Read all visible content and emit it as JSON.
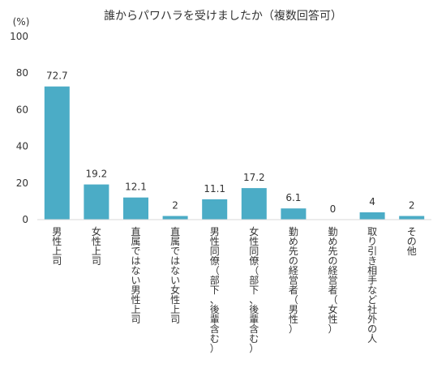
{
  "chart_data": {
    "type": "bar",
    "title": "誰からパワハラを受けましたか（複数回答可）",
    "ylabel": "(%)",
    "xlabel": "",
    "ylim": [
      0,
      100
    ],
    "yticks": [
      0,
      20,
      40,
      60,
      80,
      100
    ],
    "ytick_labels": [
      "0",
      "20",
      "40",
      "60",
      "80",
      "100"
    ],
    "categories": [
      "男性上司",
      "女性上司",
      "直属ではない男性上司",
      "直属ではない女性上司",
      "男性同僚（部下、後輩含む）",
      "女性同僚（部下、後輩含む）",
      "勤め先の経営者（男性）",
      "勤め先の経営者（女性）",
      "取り引き相手など社外の人",
      "その他"
    ],
    "values": [
      72.7,
      19.2,
      12.1,
      2,
      11.1,
      17.2,
      6.1,
      0,
      4,
      2
    ],
    "value_labels": [
      "72.7",
      "19.2",
      "12.1",
      "2",
      "11.1",
      "17.2",
      "6.1",
      "0",
      "4",
      "2"
    ],
    "grid": false,
    "legend": "none",
    "bar_color": "#4BACC6"
  }
}
